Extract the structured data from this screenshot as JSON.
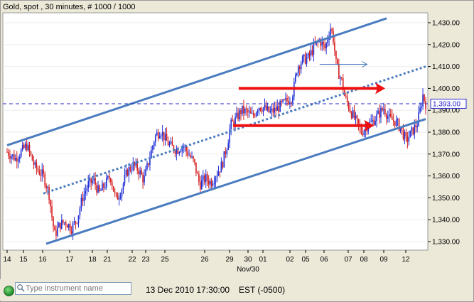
{
  "header": {
    "title": "Gold, spot , 30 minutes, # 1000 / 1000"
  },
  "statusbar": {
    "search_placeholder": "Type instrument name",
    "datetime": "13 Dec 2010 17:30:00",
    "timezone": "EST (-0500)"
  },
  "colors": {
    "candle_up": "#1f2fd6",
    "candle_down": "#d61f1f",
    "channel": "#4a7cbf",
    "arrow_red": "#ee1111",
    "current_price": "#2a2ad0"
  },
  "chart_data": {
    "type": "candlestick",
    "instrument": "Gold, spot",
    "interval": "30 minutes",
    "ylim": [
      1325,
      1435
    ],
    "yticks": [
      1330,
      1340,
      1350,
      1360,
      1370,
      1380,
      1390,
      1400,
      1410,
      1420,
      1430
    ],
    "ytick_labels": [
      "1,330.00",
      "1,340.00",
      "1,350.00",
      "1,360.00",
      "1,370.00",
      "1,380.00",
      "1,390.00",
      "1,400.00",
      "1,410.00",
      "1,420.00",
      "1,430.00"
    ],
    "xticks": [
      "14",
      "15",
      "16",
      "17",
      "18",
      "21",
      "22",
      "23",
      "25",
      "26",
      "29",
      "30",
      "01",
      "02",
      "05",
      "06",
      "07",
      "08",
      "09",
      "12"
    ],
    "xtick_sublabel": "Nov/30",
    "current_price_label": "1,393.00",
    "current_price": 1393,
    "price_path": [
      [
        0,
        1371
      ],
      [
        3,
        1368
      ],
      [
        7,
        1374
      ],
      [
        10,
        1364
      ],
      [
        13,
        1360
      ],
      [
        15,
        1352
      ],
      [
        16,
        1342
      ],
      [
        17,
        1333
      ],
      [
        19,
        1338
      ],
      [
        21,
        1339
      ],
      [
        23,
        1336
      ],
      [
        25,
        1340
      ],
      [
        27,
        1350
      ],
      [
        29,
        1356
      ],
      [
        31,
        1358
      ],
      [
        33,
        1352
      ],
      [
        35,
        1356
      ],
      [
        37,
        1360
      ],
      [
        39,
        1349
      ],
      [
        41,
        1354
      ],
      [
        43,
        1362
      ],
      [
        45,
        1365
      ],
      [
        47,
        1363
      ],
      [
        49,
        1358
      ],
      [
        51,
        1368
      ],
      [
        53,
        1378
      ],
      [
        55,
        1381
      ],
      [
        57,
        1376
      ],
      [
        59,
        1373
      ],
      [
        61,
        1372
      ],
      [
        63,
        1374
      ],
      [
        65,
        1370
      ],
      [
        67,
        1366
      ],
      [
        69,
        1356
      ],
      [
        71,
        1359
      ],
      [
        73,
        1357
      ],
      [
        75,
        1361
      ],
      [
        77,
        1365
      ],
      [
        79,
        1375
      ],
      [
        80,
        1383
      ],
      [
        82,
        1386
      ],
      [
        84,
        1390
      ],
      [
        86,
        1389
      ],
      [
        88,
        1387
      ],
      [
        90,
        1392
      ],
      [
        92,
        1391
      ],
      [
        94,
        1389
      ],
      [
        96,
        1390
      ],
      [
        98,
        1392
      ],
      [
        100,
        1394
      ],
      [
        102,
        1396
      ],
      [
        103,
        1402
      ],
      [
        104,
        1410
      ],
      [
        106,
        1413
      ],
      [
        108,
        1414
      ],
      [
        110,
        1419
      ],
      [
        112,
        1422
      ],
      [
        114,
        1418
      ],
      [
        115,
        1424
      ],
      [
        116,
        1428
      ],
      [
        117,
        1422
      ],
      [
        118,
        1410
      ],
      [
        120,
        1403
      ],
      [
        121,
        1396
      ],
      [
        123,
        1390
      ],
      [
        125,
        1385
      ],
      [
        127,
        1380
      ],
      [
        129,
        1383
      ],
      [
        131,
        1385
      ],
      [
        133,
        1388
      ],
      [
        135,
        1391
      ],
      [
        137,
        1386
      ],
      [
        139,
        1385
      ],
      [
        141,
        1382
      ],
      [
        143,
        1376
      ],
      [
        145,
        1380
      ],
      [
        147,
        1384
      ],
      [
        148,
        1390
      ],
      [
        149,
        1397
      ],
      [
        150,
        1393
      ]
    ],
    "channel_upper": [
      [
        0,
        1374
      ],
      [
        136,
        1432
      ]
    ],
    "channel_lower": [
      [
        14,
        1329
      ],
      [
        150,
        1386
      ]
    ],
    "channel_mid": [
      [
        13,
        1352
      ],
      [
        150,
        1410
      ]
    ],
    "current_price_line": 1393,
    "annotations": [
      {
        "kind": "thin-arrow",
        "from": [
          112,
          1411
        ],
        "to": [
          129,
          1411
        ]
      },
      {
        "kind": "red-arrow",
        "from": [
          83,
          1400
        ],
        "to": [
          135,
          1400
        ]
      },
      {
        "kind": "red-arrow",
        "from": [
          81,
          1383
        ],
        "to": [
          131,
          1383
        ]
      }
    ]
  }
}
